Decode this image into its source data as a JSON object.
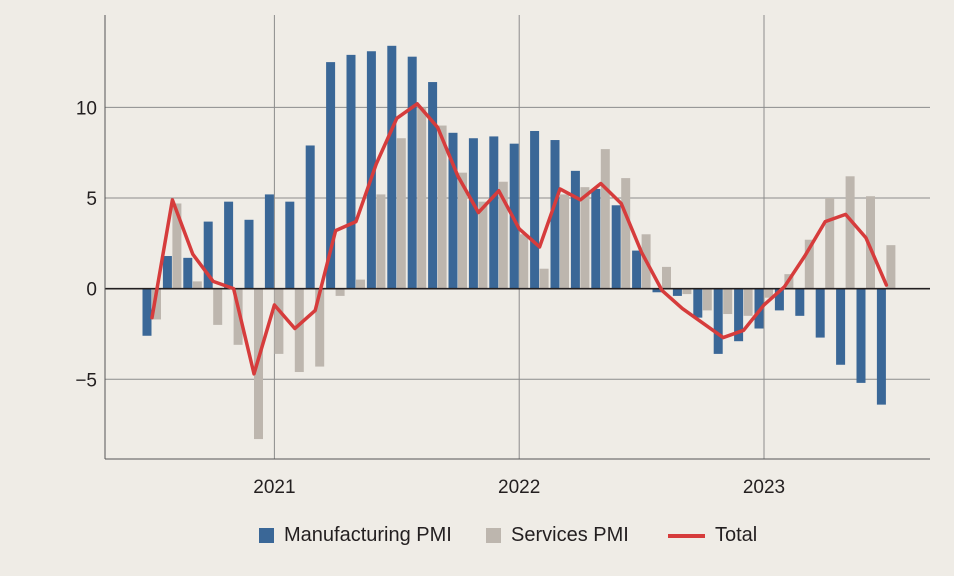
{
  "chart_data": {
    "type": "bar",
    "title": "",
    "xlabel": "",
    "ylabel": "",
    "start_month": "2020-07",
    "x_ticks": [
      {
        "label": "2021",
        "month_index": 6
      },
      {
        "label": "2022",
        "month_index": 18
      },
      {
        "label": "2023",
        "month_index": 30
      }
    ],
    "y_ticks": [
      -5,
      0,
      5,
      10
    ],
    "y_tick_labels": [
      "−5",
      "0",
      "5",
      "10"
    ],
    "ylim": [
      -9.4,
      15.1
    ],
    "grid": true,
    "legend_position": "bottom",
    "series": [
      {
        "name": "Manufacturing PMI",
        "type": "bar",
        "color": "#3a6797",
        "values": [
          -2.6,
          1.8,
          1.7,
          3.7,
          4.8,
          3.8,
          5.2,
          4.8,
          7.9,
          12.5,
          12.9,
          13.1,
          13.4,
          12.8,
          11.4,
          8.6,
          8.3,
          8.4,
          8.0,
          8.7,
          8.2,
          6.5,
          5.5,
          4.6,
          2.1,
          -0.2,
          -0.4,
          -1.6,
          -3.6,
          -2.9,
          -2.2,
          -1.2,
          -1.5,
          -2.7,
          -4.2,
          -5.2,
          -6.4
        ]
      },
      {
        "name": "Services PMI",
        "type": "bar",
        "color": "#bdb6ae",
        "values": [
          -1.7,
          4.7,
          0.4,
          -2.0,
          -3.1,
          -8.3,
          -3.6,
          -4.6,
          -4.3,
          -0.4,
          0.5,
          5.2,
          8.3,
          10.0,
          9.0,
          6.4,
          4.8,
          5.9,
          3.0,
          1.1,
          5.2,
          5.6,
          7.7,
          6.1,
          3.0,
          1.2,
          -0.3,
          -1.2,
          -1.4,
          -1.5,
          -0.5,
          0.8,
          2.7,
          5.0,
          6.2,
          5.1,
          2.4
        ]
      },
      {
        "name": "Total",
        "type": "line",
        "color": "#d63c3c",
        "values": [
          -1.6,
          4.9,
          1.9,
          0.4,
          0.0,
          -4.7,
          -0.9,
          -2.2,
          -1.2,
          3.2,
          3.7,
          6.9,
          9.4,
          10.2,
          8.9,
          6.2,
          4.2,
          5.4,
          3.3,
          2.3,
          5.5,
          4.9,
          5.8,
          4.7,
          2.0,
          -0.1,
          -1.1,
          -1.9,
          -2.7,
          -2.3,
          -0.9,
          0.1,
          1.8,
          3.7,
          4.1,
          2.8,
          0.2
        ]
      }
    ]
  }
}
